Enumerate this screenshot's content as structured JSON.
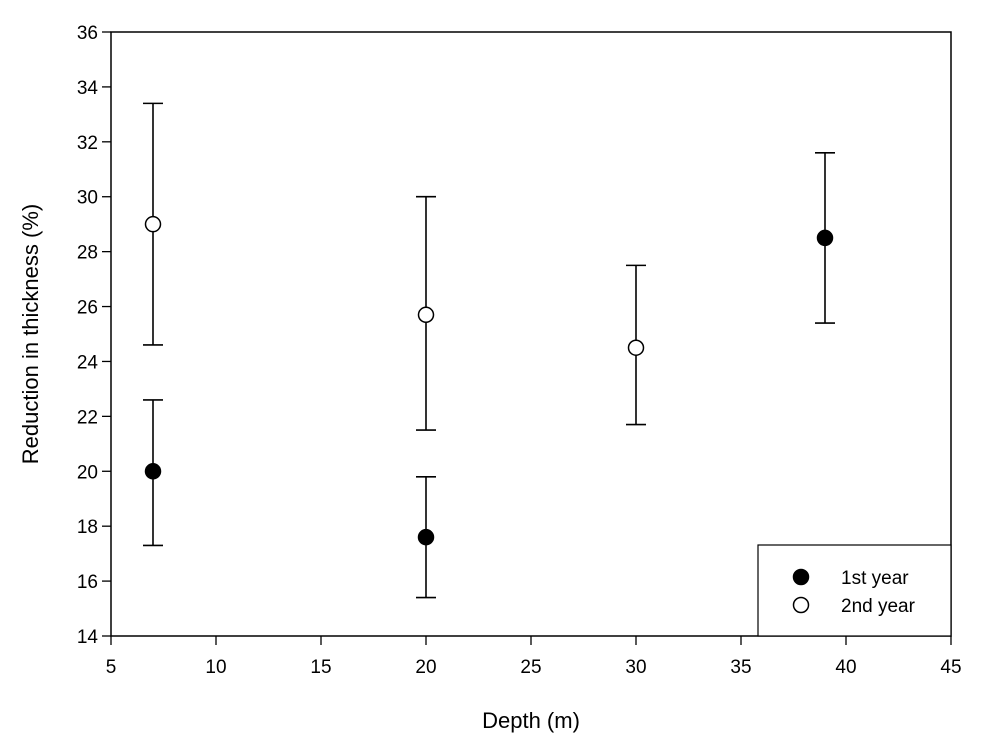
{
  "chart_data": {
    "type": "scatter",
    "title": "",
    "xlabel": "Depth (m)",
    "ylabel": "Reduction in thickness (%)",
    "xlim": [
      5,
      45
    ],
    "ylim": [
      14,
      36
    ],
    "xticks": [
      5,
      10,
      15,
      20,
      25,
      30,
      35,
      40,
      45
    ],
    "yticks": [
      14,
      16,
      18,
      20,
      22,
      24,
      26,
      28,
      30,
      32,
      34,
      36
    ],
    "grid": false,
    "legend_position": "bottom-right",
    "series": [
      {
        "name": "1st year",
        "marker": "filled-circle",
        "color": "#000000",
        "points": [
          {
            "x": 7,
            "y": 20.0,
            "ylow": 17.3,
            "yhigh": 22.6
          },
          {
            "x": 20,
            "y": 17.6,
            "ylow": 15.4,
            "yhigh": 19.8
          },
          {
            "x": 39,
            "y": 28.5,
            "ylow": 25.4,
            "yhigh": 31.6
          }
        ]
      },
      {
        "name": "2nd year",
        "marker": "open-circle",
        "color": "#000000",
        "points": [
          {
            "x": 7,
            "y": 29.0,
            "ylow": 24.6,
            "yhigh": 33.4
          },
          {
            "x": 20,
            "y": 25.7,
            "ylow": 21.5,
            "yhigh": 30.0
          },
          {
            "x": 30,
            "y": 24.5,
            "ylow": 21.7,
            "yhigh": 27.5
          }
        ]
      }
    ]
  }
}
